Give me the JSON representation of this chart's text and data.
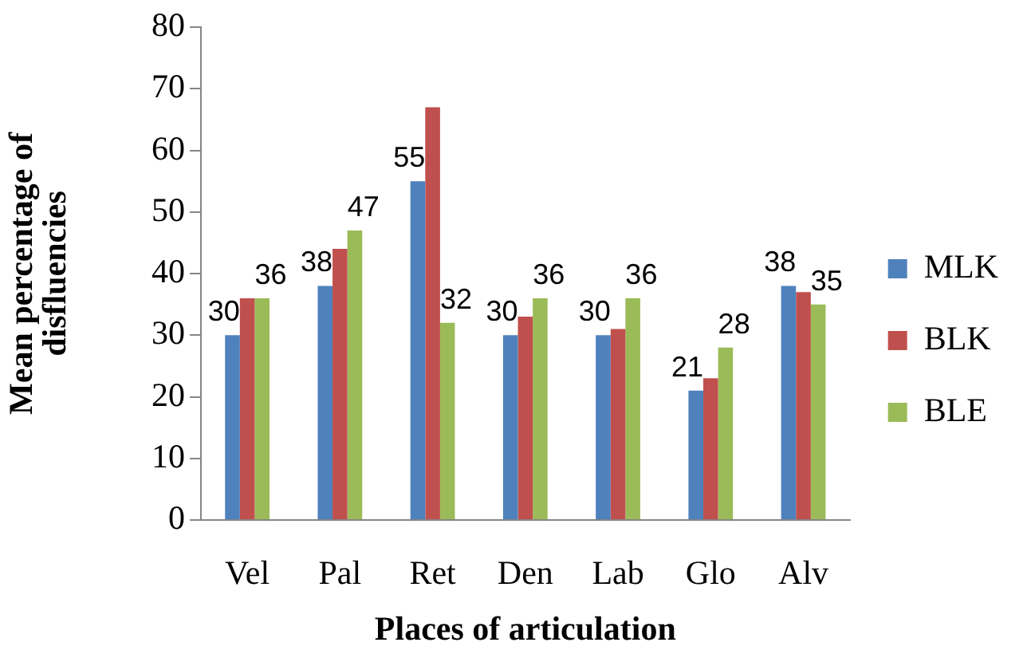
{
  "chart_data": {
    "type": "bar",
    "xlabel": "Places of articulation",
    "ylabel": "Mean percentage of disfluencies",
    "categories": [
      "Vel",
      "Pal",
      "Ret",
      "Den",
      "Lab",
      "Glo",
      "Alv"
    ],
    "series": [
      {
        "name": "MLK",
        "color": "#4f81bd",
        "values": [
          30,
          38,
          55,
          30,
          30,
          21,
          38
        ],
        "value_labels": [
          "30",
          "38",
          "55",
          "30",
          "30",
          "21",
          "38"
        ]
      },
      {
        "name": "BLK",
        "color": "#c0504d",
        "values": [
          36,
          44,
          67,
          33,
          31,
          23,
          37
        ]
      },
      {
        "name": "BLE",
        "color": "#9bbb59",
        "values": [
          36,
          47,
          32,
          36,
          36,
          28,
          35
        ],
        "value_labels": [
          "36",
          "47",
          "32",
          "36",
          "36",
          "28",
          "35"
        ]
      }
    ],
    "ylim": [
      0,
      80
    ],
    "yticks": [
      0,
      10,
      20,
      30,
      40,
      50,
      60,
      70,
      80
    ],
    "grid": false,
    "legend": "right"
  }
}
